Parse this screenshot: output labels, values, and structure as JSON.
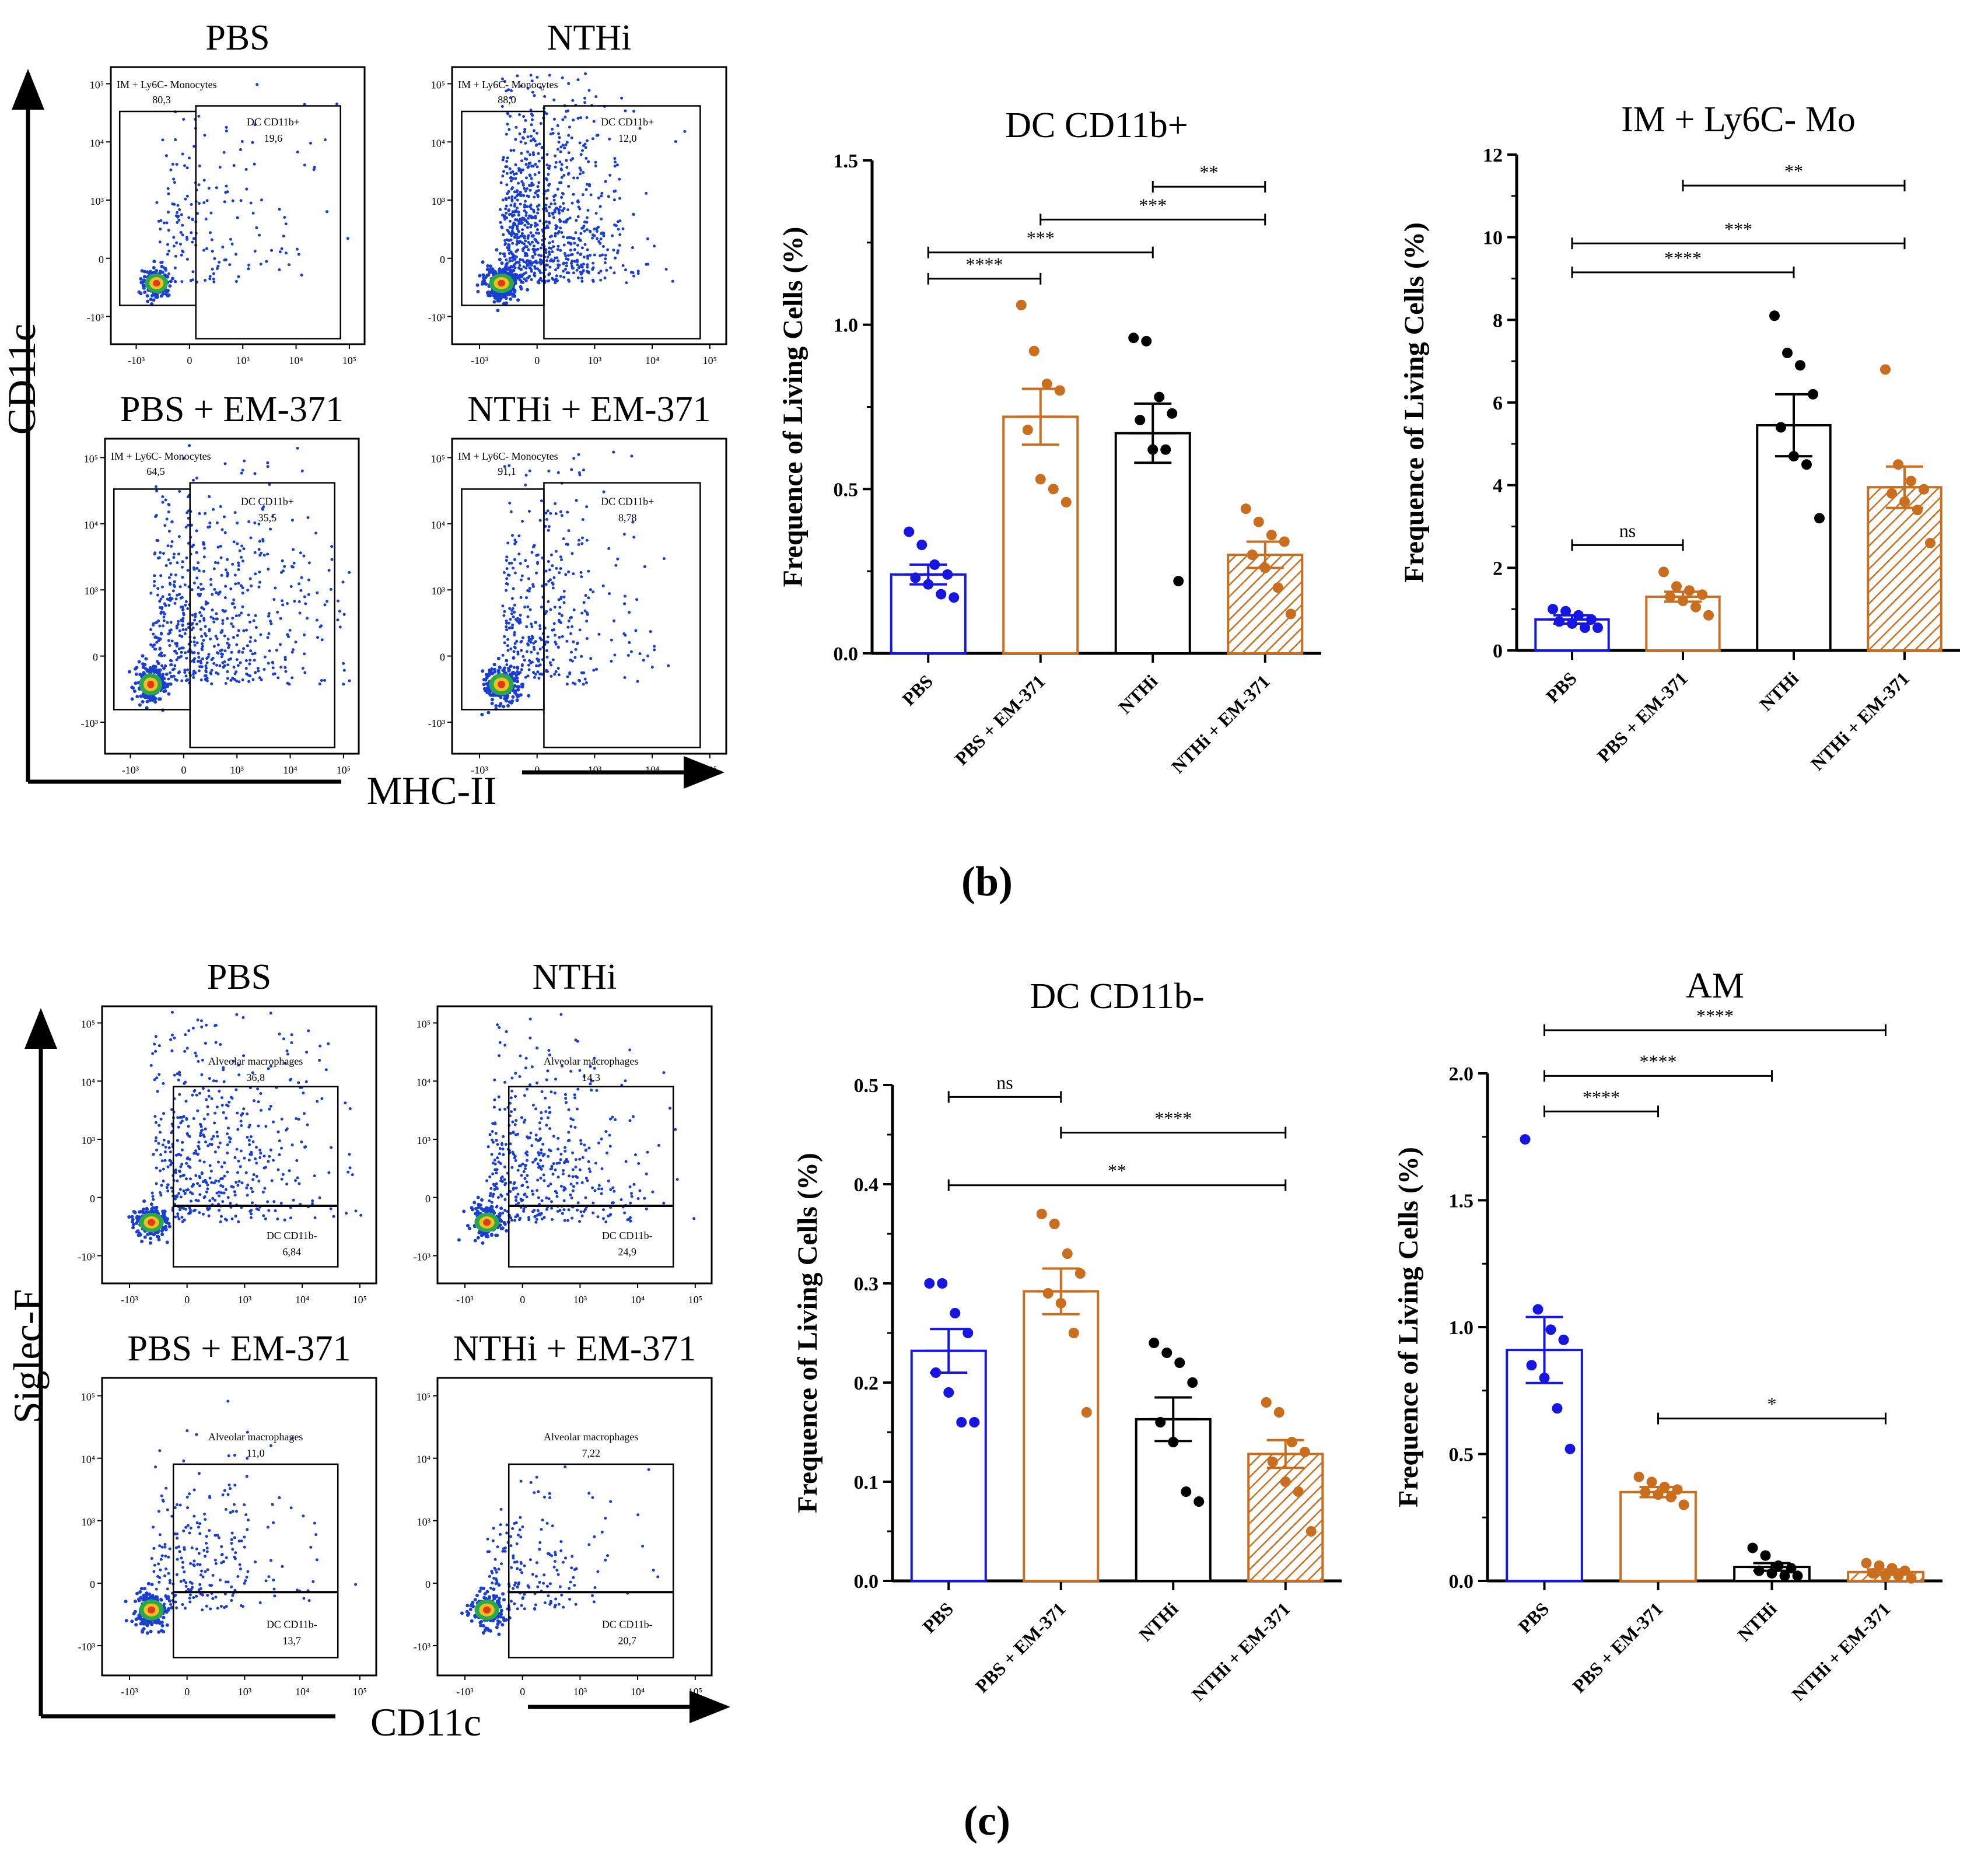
{
  "figure": {
    "panel_labels": [
      "(b)",
      "(c)"
    ],
    "colors": {
      "pbs": "#1616e0",
      "em": "#c86e1e",
      "nthi": "#000000",
      "axis": "#000000",
      "gate": "#000000"
    }
  },
  "flow_b": {
    "y_axis": "CD11c",
    "x_axis": "MHC-II",
    "plots": [
      {
        "title": "PBS",
        "gate1_label": "IM + Ly6C- Monocytes",
        "gate1_value": "80,3",
        "gate2_label": "DC CD11b+",
        "gate2_value": "19,6",
        "ticks_y": [
          "10⁵",
          "10⁴",
          "10³",
          "0",
          "-10³"
        ],
        "ticks_x": [
          "-10³",
          "0",
          "10³",
          "10⁴",
          "10⁵"
        ]
      },
      {
        "title": "NTHi",
        "gate1_label": "IM + Ly6C- Monocytes",
        "gate1_value": "88,0",
        "gate2_label": "DC CD11b+",
        "gate2_value": "12,0",
        "ticks_y": [
          "10⁵",
          "10⁴",
          "10³",
          "0",
          "-10³"
        ],
        "ticks_x": [
          "-10³",
          "0",
          "10³",
          "10⁴",
          "10⁵"
        ]
      },
      {
        "title": "PBS + EM-371",
        "gate1_label": "IM + Ly6C- Monocytes",
        "gate1_value": "64,5",
        "gate2_label": "DC CD11b+",
        "gate2_value": "35,5",
        "ticks_y": [
          "10⁵",
          "10⁴",
          "10³",
          "0",
          "-10³"
        ],
        "ticks_x": [
          "-10³",
          "0",
          "10³",
          "10⁴",
          "10⁵"
        ]
      },
      {
        "title": "NTHi + EM-371",
        "gate1_label": "IM + Ly6C- Monocytes",
        "gate1_value": "91,1",
        "gate2_label": "DC CD11b+",
        "gate2_value": "8,78",
        "ticks_y": [
          "10⁵",
          "10⁴",
          "10³",
          "0",
          "-10³"
        ],
        "ticks_x": [
          "-10³",
          "0",
          "10³",
          "10⁴",
          "10⁵"
        ]
      }
    ]
  },
  "flow_c": {
    "y_axis": "Siglec-F",
    "x_axis": "CD11c",
    "plots": [
      {
        "title": "PBS",
        "gate1_label": "Alveolar macrophages",
        "gate1_value": "36,8",
        "gate2_label": "DC CD11b-",
        "gate2_value": "6,84",
        "ticks_y": [
          "10⁵",
          "10⁴",
          "10³",
          "0",
          "-10³"
        ],
        "ticks_x": [
          "-10³",
          "0",
          "10³",
          "10⁴",
          "10⁵"
        ]
      },
      {
        "title": "NTHi",
        "gate1_label": "Alveolar macrophages",
        "gate1_value": "14,3",
        "gate2_label": "DC CD11b-",
        "gate2_value": "24,9",
        "ticks_y": [
          "10⁵",
          "10⁴",
          "10³",
          "0",
          "-10³"
        ],
        "ticks_x": [
          "-10³",
          "0",
          "10³",
          "10⁴",
          "10⁵"
        ]
      },
      {
        "title": "PBS + EM-371",
        "gate1_label": "Alveolar macrophages",
        "gate1_value": "11,0",
        "gate2_label": "DC CD11b-",
        "gate2_value": "13,7",
        "ticks_y": [
          "10⁵",
          "10⁴",
          "10³",
          "0",
          "-10³"
        ],
        "ticks_x": [
          "-10³",
          "0",
          "10³",
          "10⁴",
          "10⁵"
        ]
      },
      {
        "title": "NTHi + EM-371",
        "gate1_label": "Alveolar macrophages",
        "gate1_value": "7,22",
        "gate2_label": "DC CD11b-",
        "gate2_value": "20,7",
        "ticks_y": [
          "10⁵",
          "10⁴",
          "10³",
          "0",
          "-10³"
        ],
        "ticks_x": [
          "-10³",
          "0",
          "10³",
          "10⁴",
          "10⁵"
        ]
      }
    ]
  },
  "chart_data": [
    {
      "type": "bar",
      "title": "DC CD11b+",
      "ylabel": "Frequence of Living Cells (%)",
      "xlabel": "",
      "categories": [
        "PBS",
        "PBS + EM-371",
        "NTHi",
        "NTHi + EM-371"
      ],
      "values": [
        0.24,
        0.72,
        0.67,
        0.3
      ],
      "sem": [
        0.03,
        0.085,
        0.09,
        0.04
      ],
      "points": [
        [
          0.37,
          0.33,
          0.27,
          0.24,
          0.23,
          0.21,
          0.18,
          0.17
        ],
        [
          1.06,
          0.92,
          0.82,
          0.8,
          0.68,
          0.53,
          0.5,
          0.46
        ],
        [
          0.96,
          0.95,
          0.78,
          0.73,
          0.71,
          0.62,
          0.62,
          0.22
        ],
        [
          0.44,
          0.4,
          0.36,
          0.34,
          0.3,
          0.26,
          0.2,
          0.12
        ]
      ],
      "ylim": [
        0,
        1.5
      ],
      "yticks": [
        0.0,
        0.5,
        1.0,
        1.5
      ],
      "ytick_labels": [
        "0.0",
        "0.5",
        "1.0",
        "1.5"
      ],
      "significance": [
        {
          "from": 0,
          "to": 1,
          "y": 1.14,
          "label": "****"
        },
        {
          "from": 0,
          "to": 2,
          "y": 1.22,
          "label": "***"
        },
        {
          "from": 1,
          "to": 3,
          "y": 1.32,
          "label": "***"
        },
        {
          "from": 2,
          "to": 3,
          "y": 1.42,
          "label": "**"
        }
      ]
    },
    {
      "type": "bar",
      "title": "IM + Ly6C- Mo",
      "ylabel": "Frequence of Living Cells (%)",
      "xlabel": "",
      "categories": [
        "PBS",
        "PBS + EM-371",
        "NTHi",
        "NTHi + EM-371"
      ],
      "values": [
        0.75,
        1.3,
        5.45,
        3.95
      ],
      "sem": [
        0.1,
        0.12,
        0.75,
        0.5
      ],
      "points": [
        [
          1.0,
          0.95,
          0.85,
          0.75,
          0.7,
          0.65,
          0.55,
          0.55
        ],
        [
          1.9,
          1.55,
          1.45,
          1.35,
          1.3,
          1.2,
          1.05,
          0.85
        ],
        [
          8.1,
          7.2,
          6.9,
          6.2,
          5.4,
          4.7,
          4.5,
          3.2
        ],
        [
          6.8,
          4.5,
          4.1,
          3.9,
          3.8,
          3.6,
          3.4,
          2.6
        ]
      ],
      "ylim": [
        0,
        12
      ],
      "yticks": [
        0,
        2,
        4,
        6,
        8,
        10,
        12
      ],
      "ytick_labels": [
        "0",
        "2",
        "4",
        "6",
        "8",
        "10",
        "12"
      ],
      "significance": [
        {
          "from": 0,
          "to": 1,
          "y": 2.55,
          "label": "ns"
        },
        {
          "from": 0,
          "to": 2,
          "y": 9.15,
          "label": "****"
        },
        {
          "from": 0,
          "to": 3,
          "y": 9.85,
          "label": "***"
        },
        {
          "from": 1,
          "to": 3,
          "y": 11.25,
          "label": "**"
        }
      ]
    },
    {
      "type": "bar",
      "title": "DC CD11b-",
      "ylabel": "Frequence of Living Cells (%)",
      "xlabel": "",
      "categories": [
        "PBS",
        "PBS + EM-371",
        "NTHi",
        "NTHi + EM-371"
      ],
      "values": [
        0.232,
        0.292,
        0.163,
        0.128
      ],
      "sem": [
        0.022,
        0.023,
        0.022,
        0.014
      ],
      "points": [
        [
          0.3,
          0.3,
          0.27,
          0.25,
          0.21,
          0.19,
          0.16,
          0.16
        ],
        [
          0.37,
          0.36,
          0.33,
          0.31,
          0.29,
          0.28,
          0.25,
          0.17
        ],
        [
          0.24,
          0.23,
          0.22,
          0.2,
          0.16,
          0.14,
          0.09,
          0.08
        ],
        [
          0.18,
          0.17,
          0.14,
          0.13,
          0.12,
          0.1,
          0.09,
          0.05
        ]
      ],
      "ylim": [
        0,
        0.5
      ],
      "yticks": [
        0.0,
        0.1,
        0.2,
        0.3,
        0.4,
        0.5
      ],
      "ytick_labels": [
        "0.0",
        "0.1",
        "0.2",
        "0.3",
        "0.4",
        "0.5"
      ],
      "significance": [
        {
          "from": 0,
          "to": 1,
          "y": 0.488,
          "label": "ns"
        },
        {
          "from": 1,
          "to": 3,
          "y": 0.452,
          "label": "****"
        },
        {
          "from": 0,
          "to": 3,
          "y": 0.399,
          "label": "**"
        }
      ]
    },
    {
      "type": "bar",
      "title": "AM",
      "ylabel": "Frequence of Living Cells (%)",
      "xlabel": "",
      "categories": [
        "PBS",
        "PBS + EM-371",
        "NTHi",
        "NTHi + EM-371"
      ],
      "values": [
        0.91,
        0.35,
        0.055,
        0.035
      ],
      "sem": [
        0.13,
        0.02,
        0.015,
        0.01
      ],
      "points": [
        [
          1.74,
          1.07,
          0.99,
          0.95,
          0.85,
          0.8,
          0.68,
          0.52
        ],
        [
          0.41,
          0.39,
          0.37,
          0.36,
          0.35,
          0.34,
          0.33,
          0.3
        ],
        [
          0.13,
          0.1,
          0.06,
          0.05,
          0.04,
          0.03,
          0.02,
          0.02
        ],
        [
          0.07,
          0.06,
          0.05,
          0.04,
          0.03,
          0.02,
          0.02,
          0.01
        ]
      ],
      "ylim": [
        0,
        2.0
      ],
      "yticks": [
        0.0,
        0.5,
        1.0,
        1.5,
        2.0
      ],
      "ytick_labels": [
        "0.0",
        "0.5",
        "1.0",
        "1.5",
        "2.0"
      ],
      "significance": [
        {
          "from": 0,
          "to": 1,
          "y": 1.85,
          "label": "****"
        },
        {
          "from": 0,
          "to": 2,
          "y": 1.99,
          "label": "****"
        },
        {
          "from": 0,
          "to": 3,
          "y": 2.17,
          "label": "****"
        },
        {
          "from": 1,
          "to": 3,
          "y": 0.64,
          "label": "*"
        }
      ]
    }
  ]
}
